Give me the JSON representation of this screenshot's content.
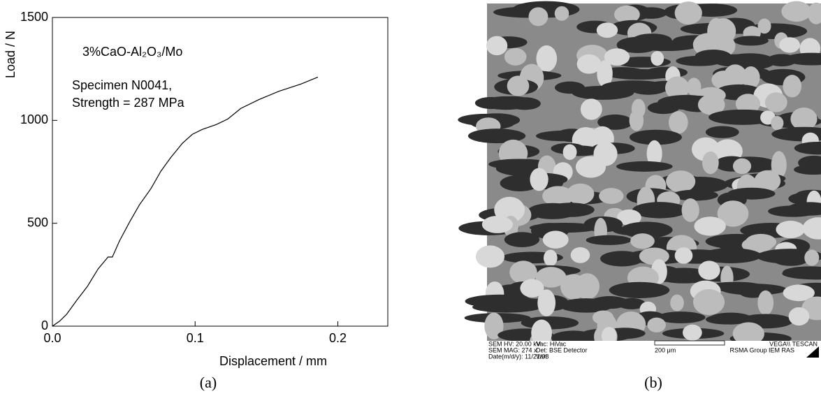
{
  "chart_data": {
    "type": "line",
    "annotations": [
      "3%CaO-Al₂O₃/Mo",
      "Specimen N0041,",
      "Strength = 287 MPa"
    ],
    "x_label": "Displacement /  mm",
    "y_label": "Load / N",
    "x": [
      0,
      0.005,
      0.01,
      0.017,
      0.0245,
      0.032,
      0.039,
      0.042,
      0.047,
      0.054,
      0.061,
      0.069,
      0.076,
      0.083,
      0.091,
      0.098,
      0.105,
      0.115,
      0.123,
      0.132,
      0.145,
      0.159,
      0.174,
      0.186
    ],
    "values": [
      0,
      24,
      58,
      125,
      193,
      278,
      336,
      336,
      414,
      505,
      590,
      668,
      753,
      820,
      888,
      932,
      956,
      980,
      1007,
      1058,
      1102,
      1142,
      1176,
      1210
    ],
    "color": "#000000",
    "xlim": [
      0,
      0.235
    ],
    "xticks": [
      {
        "value": 0,
        "label": "0.0"
      },
      0.1,
      0.2
    ],
    "ylim": [
      0,
      1500
    ],
    "yticks": [
      0,
      500,
      1000,
      1500
    ],
    "caption": "(a)"
  },
  "micrograph": {
    "caption": "(b)",
    "info": [
      "SEM HV: 20.00 kV",
      "SEM MAG: 274 x",
      "Date(m/d/y): 11/21/08",
      "Vac: HiVac",
      "Det: BSE Detector",
      "Van",
      "200 μm",
      "VEGA\\\\ TESCAN",
      "RSMA Group IEM RAS"
    ]
  }
}
